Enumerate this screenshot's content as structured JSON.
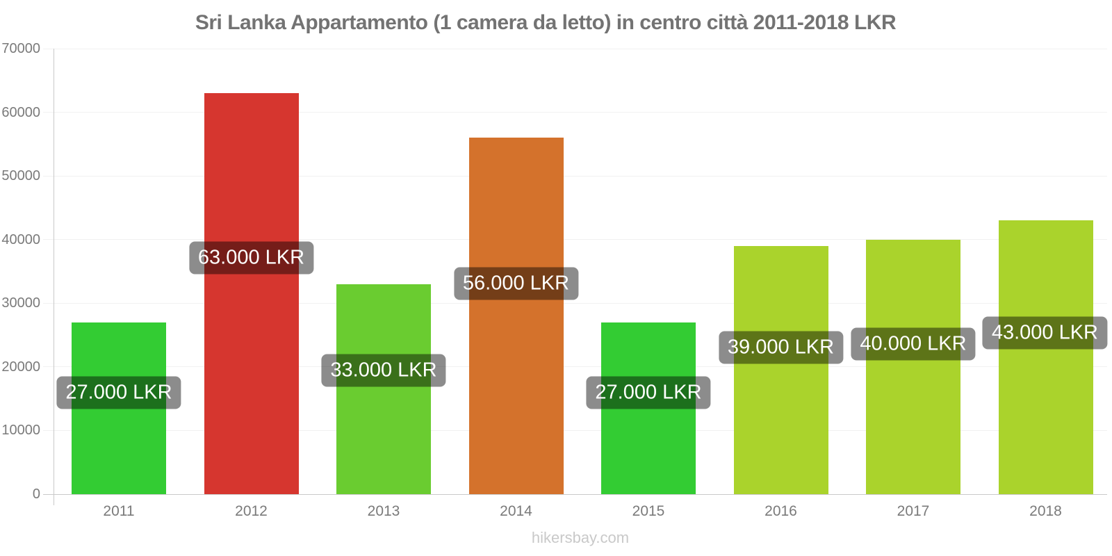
{
  "title": "Sri Lanka Appartamento (1 camera da letto) in centro città 2011-2018 LKR",
  "watermark": "hikersbay.com",
  "chart_data": {
    "type": "bar",
    "title": "Sri Lanka Appartamento (1 camera da letto) in centro città 2011-2018 LKR",
    "categories": [
      "2011",
      "2012",
      "2013",
      "2014",
      "2015",
      "2016",
      "2017",
      "2018"
    ],
    "values": [
      27000,
      63000,
      33000,
      56000,
      27000,
      39000,
      40000,
      43000
    ],
    "value_labels": [
      "27.000 LKR",
      "63.000 LKR",
      "33.000 LKR",
      "56.000 LKR",
      "27.000 LKR",
      "39.000 LKR",
      "40.000 LKR",
      "43.000 LKR"
    ],
    "bar_colors": [
      "#33cc33",
      "#d6362f",
      "#6acc30",
      "#d4722c",
      "#33cc33",
      "#aad32c",
      "#aad32c",
      "#aad32c"
    ],
    "unit": "LKR",
    "xlabel": "",
    "ylabel": "",
    "ylim": [
      0,
      70000
    ],
    "yticks": [
      0,
      10000,
      20000,
      30000,
      40000,
      50000,
      60000,
      70000
    ],
    "grid": true,
    "legend": null,
    "style": {
      "title_color": "#737373",
      "axis_color": "#c9c9c9",
      "grid_color": "#f1f1f1",
      "tick_text_color": "#7a7a7a",
      "badge_bg": "rgba(0,0,0,0.45)",
      "badge_text_color": "#ffffff",
      "watermark_color": "#c9c9c9",
      "background": "#ffffff"
    }
  }
}
